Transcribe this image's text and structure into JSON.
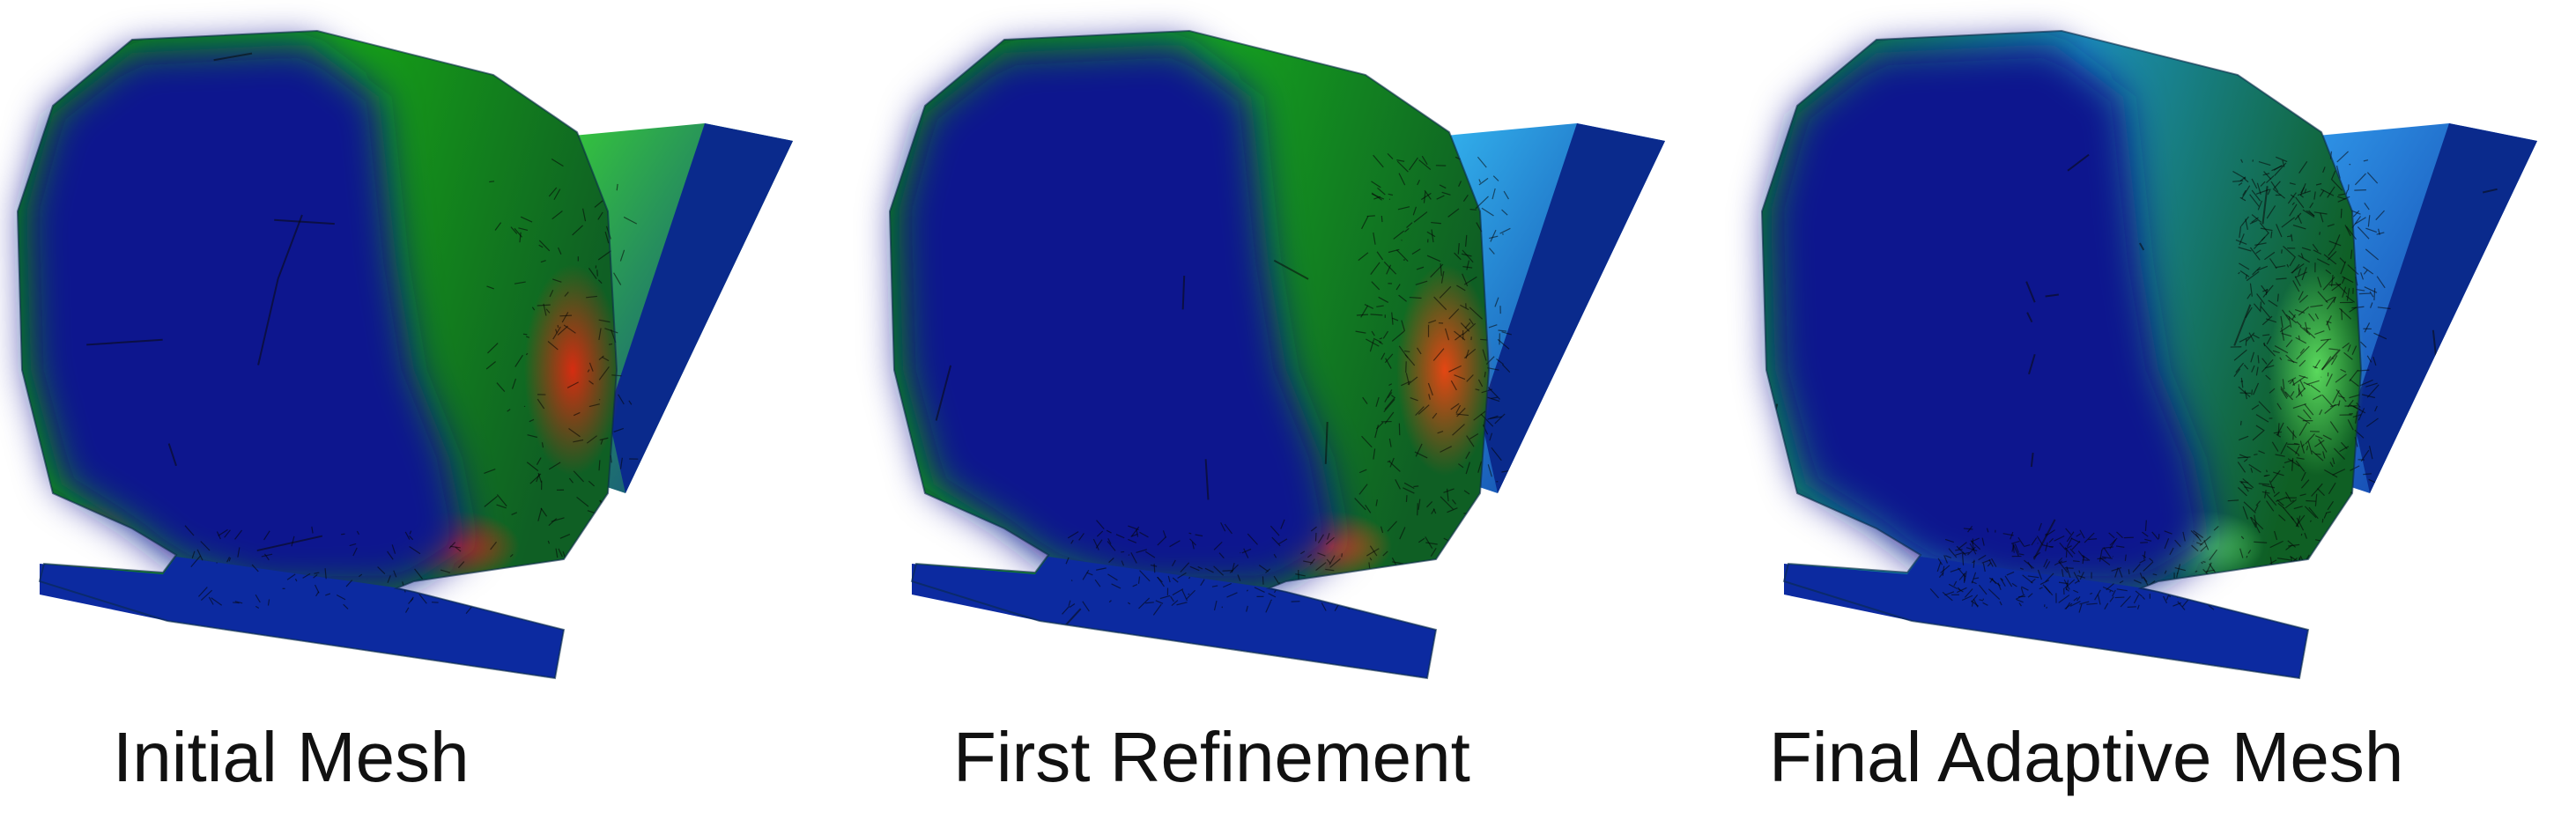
{
  "panels": [
    {
      "caption": "Initial Mesh",
      "shade": "#16a316",
      "wedgeTop": "#36c83a",
      "hot": "#e02a10",
      "density": 14
    },
    {
      "caption": "First Refinement",
      "shade": "#15a31e",
      "wedgeTop": "#33b4ee",
      "hot": "#f04512",
      "density": 28
    },
    {
      "caption": "Final Adaptive Mesh",
      "shade": "#1c8fb8",
      "wedgeTop": "#2f96e8",
      "hot": "#5fe060",
      "density": 55
    }
  ]
}
